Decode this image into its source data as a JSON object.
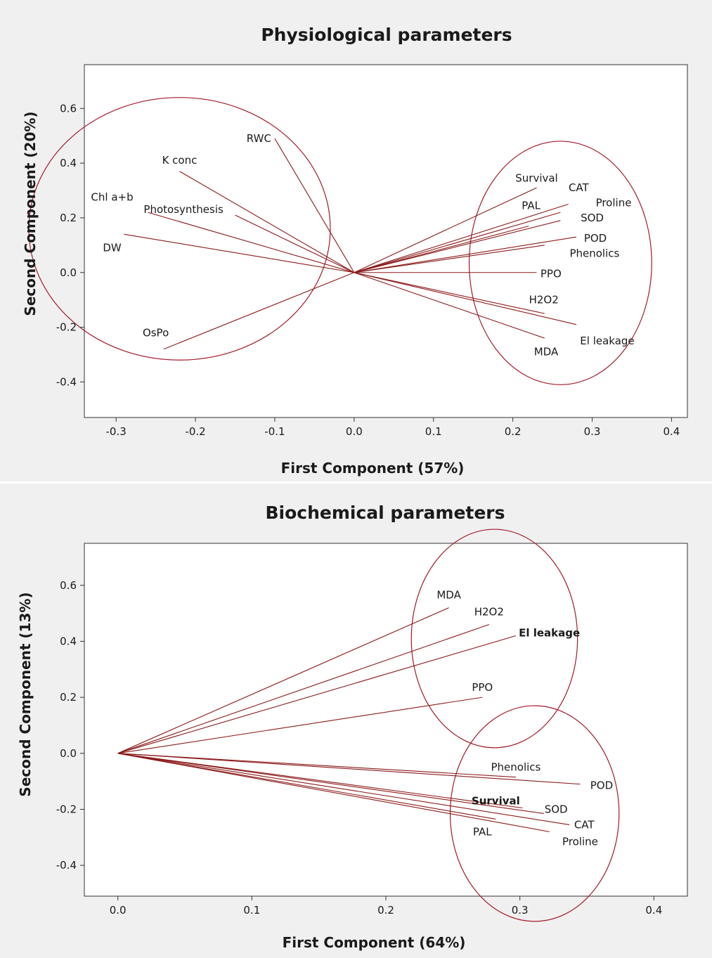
{
  "chart_data": [
    {
      "type": "scatter",
      "subtype": "loading-plot",
      "title": "Physiological parameters",
      "xlabel": "First Component (57%)",
      "ylabel": "Second Component (20%)",
      "xlim": [
        -0.34,
        0.42
      ],
      "ylim": [
        -0.53,
        0.76
      ],
      "xticks": [
        -0.3,
        -0.2,
        -0.1,
        0.0,
        0.1,
        0.2,
        0.3,
        0.4
      ],
      "yticks": [
        -0.4,
        -0.2,
        0.0,
        0.2,
        0.4,
        0.6
      ],
      "xtick_labels": [
        "-0.3",
        "-0.2",
        "-0.1",
        "0.0",
        "0.1",
        "0.2",
        "0.3",
        "0.4"
      ],
      "ytick_labels": [
        "-0.4",
        "-0.2",
        "0.0",
        "0.2",
        "0.4",
        "0.6"
      ],
      "grid": false,
      "vectors": [
        {
          "name": "RWC",
          "x": -0.1,
          "y": 0.49
        },
        {
          "name": "K conc",
          "x": -0.22,
          "y": 0.37
        },
        {
          "name": "Chl a+b",
          "x": -0.26,
          "y": 0.22
        },
        {
          "name": "Photosynthesis",
          "x": -0.15,
          "y": 0.21
        },
        {
          "name": "DW",
          "x": -0.29,
          "y": 0.14
        },
        {
          "name": "OsPo",
          "x": -0.24,
          "y": -0.28
        },
        {
          "name": "Survival",
          "x": 0.23,
          "y": 0.31
        },
        {
          "name": "CAT",
          "x": 0.27,
          "y": 0.25
        },
        {
          "name": "PAL",
          "x": 0.22,
          "y": 0.17
        },
        {
          "name": "Proline",
          "x": 0.26,
          "y": 0.22
        },
        {
          "name": "SOD",
          "x": 0.26,
          "y": 0.19
        },
        {
          "name": "POD",
          "x": 0.28,
          "y": 0.13
        },
        {
          "name": "Phenolics",
          "x": 0.24,
          "y": 0.1
        },
        {
          "name": "PPO",
          "x": 0.23,
          "y": 0.0
        },
        {
          "name": "H2O2",
          "x": 0.24,
          "y": -0.15
        },
        {
          "name": "El leakage",
          "x": 0.28,
          "y": -0.19
        },
        {
          "name": "MDA",
          "x": 0.24,
          "y": -0.24
        }
      ],
      "labels": [
        {
          "text": "RWC",
          "x": -0.12,
          "y": 0.49,
          "anchor": "middle"
        },
        {
          "text": "K conc",
          "x": -0.22,
          "y": 0.41,
          "anchor": "middle"
        },
        {
          "text": "Chl a+b",
          "x": -0.305,
          "y": 0.275,
          "anchor": "middle"
        },
        {
          "text": "Photosynthesis",
          "x": -0.215,
          "y": 0.23,
          "anchor": "middle"
        },
        {
          "text": "DW",
          "x": -0.305,
          "y": 0.09,
          "anchor": "middle"
        },
        {
          "text": "OsPo",
          "x": -0.25,
          "y": -0.22,
          "anchor": "middle"
        },
        {
          "text": "Survival",
          "x": 0.23,
          "y": 0.345,
          "anchor": "middle"
        },
        {
          "text": "CAT",
          "x": 0.283,
          "y": 0.31,
          "anchor": "middle"
        },
        {
          "text": "PAL",
          "x": 0.223,
          "y": 0.245,
          "anchor": "middle"
        },
        {
          "text": "Proline",
          "x": 0.327,
          "y": 0.255,
          "anchor": "middle"
        },
        {
          "text": "SOD",
          "x": 0.3,
          "y": 0.2,
          "anchor": "middle"
        },
        {
          "text": "POD",
          "x": 0.304,
          "y": 0.125,
          "anchor": "middle"
        },
        {
          "text": "Phenolics",
          "x": 0.303,
          "y": 0.07,
          "anchor": "middle"
        },
        {
          "text": "PPO",
          "x": 0.248,
          "y": -0.005,
          "anchor": "middle"
        },
        {
          "text": "H2O2",
          "x": 0.239,
          "y": -0.1,
          "anchor": "middle"
        },
        {
          "text": "El leakage",
          "x": 0.319,
          "y": -0.25,
          "anchor": "middle"
        },
        {
          "text": "MDA",
          "x": 0.242,
          "y": -0.29,
          "anchor": "middle"
        }
      ],
      "clusters": [
        {
          "cx": -0.22,
          "cy": 0.16,
          "rx": 0.19,
          "ry": 0.48
        },
        {
          "cx": 0.26,
          "cy": 0.035,
          "rx": 0.115,
          "ry": 0.445
        }
      ],
      "colors": {
        "vector": "#8b1a1a",
        "ellipse": "#a31a2a",
        "panel": "#f0f0f0",
        "plot": "#ffffff"
      }
    },
    {
      "type": "scatter",
      "subtype": "loading-plot",
      "title": "Biochemical parameters",
      "xlabel": "First Component (64%)",
      "ylabel": "Second Component (13%)",
      "xlim": [
        -0.025,
        0.425
      ],
      "ylim": [
        -0.51,
        0.75
      ],
      "xticks": [
        0.0,
        0.1,
        0.2,
        0.3,
        0.4
      ],
      "yticks": [
        -0.4,
        -0.2,
        0.0,
        0.2,
        0.4,
        0.6
      ],
      "xtick_labels": [
        "0.0",
        "0.1",
        "0.2",
        "0.3",
        "0.4"
      ],
      "ytick_labels": [
        "-0.4",
        "-0.2",
        "0.0",
        "0.2",
        "0.4",
        "0.6"
      ],
      "grid": false,
      "vectors": [
        {
          "name": "MDA",
          "x": 0.247,
          "y": 0.52
        },
        {
          "name": "H2O2",
          "x": 0.277,
          "y": 0.46
        },
        {
          "name": "El leakage",
          "x": 0.297,
          "y": 0.42
        },
        {
          "name": "PPO",
          "x": 0.272,
          "y": 0.2
        },
        {
          "name": "Phenolics",
          "x": 0.297,
          "y": -0.085
        },
        {
          "name": "POD",
          "x": 0.345,
          "y": -0.11
        },
        {
          "name": "Survival",
          "x": 0.302,
          "y": -0.195
        },
        {
          "name": "SOD",
          "x": 0.318,
          "y": -0.215
        },
        {
          "name": "CAT",
          "x": 0.337,
          "y": -0.255
        },
        {
          "name": "PAL",
          "x": 0.282,
          "y": -0.235
        },
        {
          "name": "Proline",
          "x": 0.322,
          "y": -0.28
        }
      ],
      "labels": [
        {
          "text": "MDA",
          "x": 0.247,
          "y": 0.565,
          "anchor": "middle"
        },
        {
          "text": "H2O2",
          "x": 0.277,
          "y": 0.505,
          "anchor": "middle"
        },
        {
          "text": "El leakage",
          "x": 0.322,
          "y": 0.43,
          "anchor": "middle",
          "bold": true
        },
        {
          "text": "PPO",
          "x": 0.272,
          "y": 0.235,
          "anchor": "middle"
        },
        {
          "text": "Phenolics",
          "x": 0.297,
          "y": -0.05,
          "anchor": "middle"
        },
        {
          "text": "POD",
          "x": 0.361,
          "y": -0.115,
          "anchor": "middle"
        },
        {
          "text": "Survival",
          "x": 0.282,
          "y": -0.17,
          "anchor": "middle",
          "bold": true
        },
        {
          "text": "SOD",
          "x": 0.327,
          "y": -0.2,
          "anchor": "middle"
        },
        {
          "text": "CAT",
          "x": 0.348,
          "y": -0.255,
          "anchor": "middle"
        },
        {
          "text": "PAL",
          "x": 0.272,
          "y": -0.28,
          "anchor": "middle"
        },
        {
          "text": "Proline",
          "x": 0.345,
          "y": -0.315,
          "anchor": "middle"
        }
      ],
      "clusters": [
        {
          "cx": 0.281,
          "cy": 0.41,
          "rx": 0.062,
          "ry": 0.39
        },
        {
          "cx": 0.311,
          "cy": -0.215,
          "rx": 0.063,
          "ry": 0.385
        }
      ],
      "colors": {
        "vector": "#8b1a1a",
        "ellipse": "#a31a2a",
        "panel": "#f0f0f0",
        "plot": "#ffffff"
      }
    }
  ]
}
